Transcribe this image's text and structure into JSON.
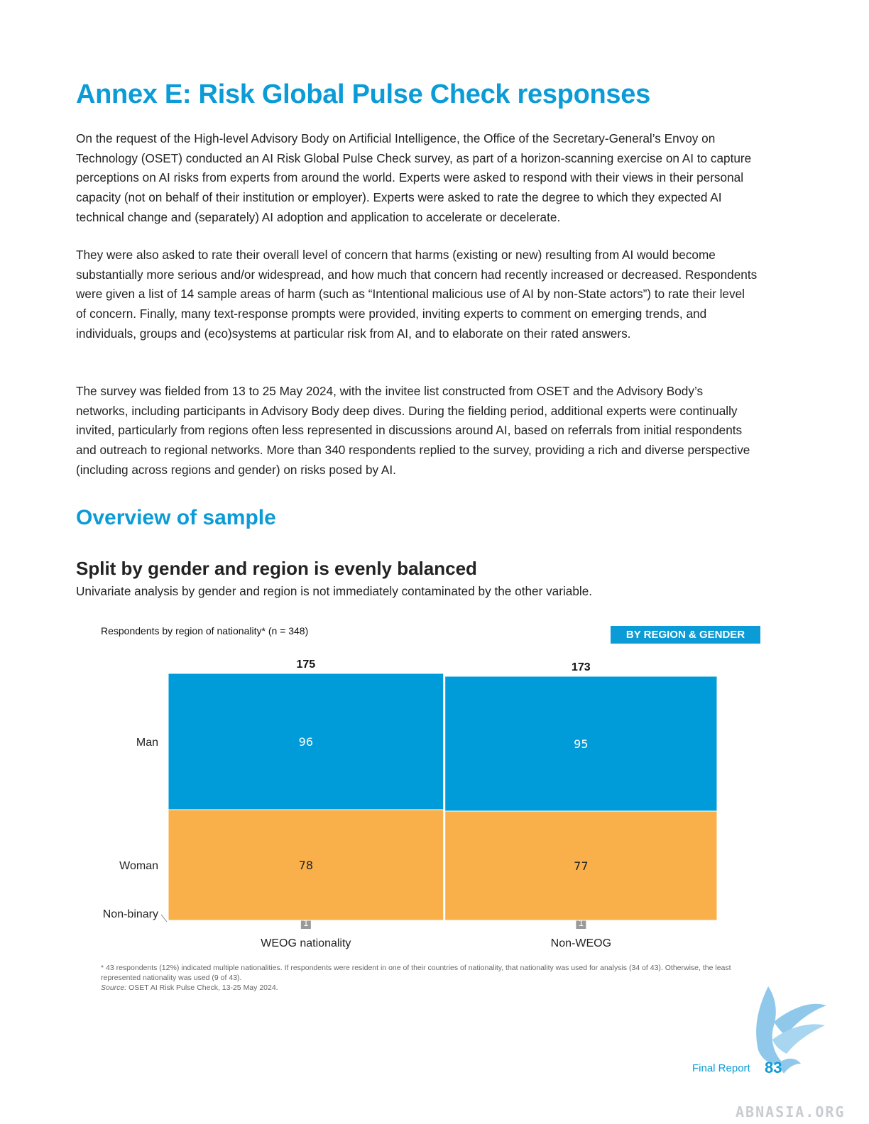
{
  "page": {
    "title": "Annex E: Risk Global Pulse Check responses",
    "paragraphs": [
      "On the request of the High-level Advisory Body on Artificial Intelligence, the Office of the Secretary-General’s Envoy on Technology (OSET) conducted an AI Risk Global Pulse Check survey, as part of a horizon-scanning exercise on AI to capture perceptions on AI risks from experts from around the world. Experts were asked to respond with their views in their personal capacity (not on behalf of their institution or employer). Experts were asked to rate the degree to which they expected AI technical change and (separately) AI adoption and application to accelerate or decelerate.",
      "They were also asked to rate their overall level of concern that harms (existing or new) resulting from AI would become substantially more serious and/or widespread, and how much that concern had recently increased or decreased. Respondents were given a list of 14 sample areas of harm (such as “Intentional malicious use of AI by non-State actors”) to rate their level of concern. Finally, many text-response prompts were provided, inviting experts to comment on emerging trends, and individuals, groups and (eco)systems at particular risk from AI, and to elaborate on their rated answers.",
      "The survey was fielded from 13 to 25 May 2024, with the invitee list constructed from OSET and the Advisory Body’s networks, including participants in Advisory Body deep dives. During the fielding period, additional experts were continually invited, particularly from regions often less represented in discussions around AI, based on referrals from initial respondents and outreach to regional networks. More than 340 respondents replied to the survey, providing a rich and diverse perspective (including across regions and gender) on risks posed by AI."
    ],
    "section_heading": "Overview of sample",
    "chart_heading": "Split by gender and region is evenly balanced",
    "chart_subheading": "Univariate analysis by gender and region is not immediately contaminated by the other variable.",
    "footnote": "* 43 respondents (12%) indicated multiple nationalities. If respondents were resident in one of their countries of nationality, that nationality was used for analysis (34 of 43). Otherwise, the least represented nationality was used (9 of 43).",
    "source_label": "Source:",
    "source_text": " OSET AI Risk Pulse Check, 13-25 May 2024.",
    "footer_label": "Final Report",
    "page_number": "83",
    "watermark": "ABNASIA.ORG"
  },
  "chart_data": {
    "type": "bar",
    "subtype": "stacked-mekko",
    "title": "Respondents by region of nationality* (n = 348)",
    "badge": "BY REGION & GENDER",
    "categories": [
      "WEOG nationality",
      "Non-WEOG"
    ],
    "totals": [
      175,
      173
    ],
    "series": [
      {
        "name": "Non-binary",
        "values": [
          1,
          1
        ],
        "color": "#9a9a9a"
      },
      {
        "name": "Woman",
        "values": [
          78,
          77
        ],
        "color": "#f9b04b"
      },
      {
        "name": "Man",
        "values": [
          96,
          95
        ],
        "color": "#009cd9"
      }
    ],
    "ylim": [
      0,
      175
    ],
    "grid": false,
    "legend": "left-row-labels"
  }
}
